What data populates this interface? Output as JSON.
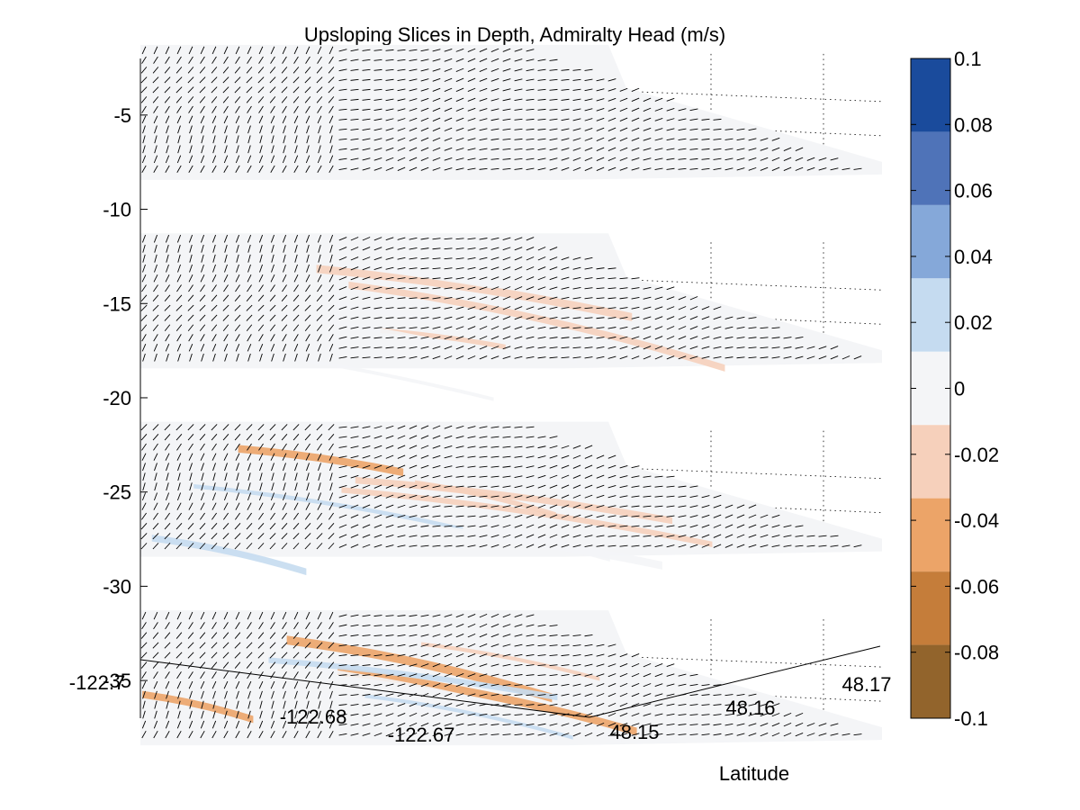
{
  "chart_data": {
    "type": "heatmap",
    "title": "Upsloping Slices in Depth, Admiralty Head (m/s)",
    "xlabel": "",
    "ylabel": "Latitude",
    "zlabel": "",
    "z_ticks": [
      -5,
      -10,
      -15,
      -20,
      -25,
      -30,
      -35
    ],
    "x_ticks": [
      -122.7,
      -122.68,
      -122.67
    ],
    "x_tick_labels": [
      "-122.7",
      "-122.68",
      "-122.67"
    ],
    "y_ticks": [
      48.15,
      48.16,
      48.17
    ],
    "y_tick_labels": [
      "48.15",
      "48.16",
      "48.17"
    ],
    "colorbar": {
      "ticks": [
        0.1,
        0.08,
        0.06,
        0.04,
        0.02,
        0,
        -0.02,
        -0.04,
        -0.06,
        -0.08,
        -0.1
      ],
      "tick_labels": [
        "0.1",
        "0.08",
        "0.06",
        "0.04",
        "0.02",
        "0",
        "-0.02",
        "-0.04",
        "-0.06",
        "-0.08",
        "-0.1"
      ],
      "range": [
        -0.1,
        0.1
      ],
      "colors": [
        "#1a4b9c",
        "#4f73b8",
        "#85a8d9",
        "#c5dbf0",
        "#f4f5f7",
        "#f6d0bb",
        "#eca468",
        "#c57d3a",
        "#92642c"
      ]
    },
    "slices": [
      {
        "depth": -5,
        "vertical_velocity_range": [
          0,
          0
        ]
      },
      {
        "depth": -15,
        "vertical_velocity_range": [
          -0.02,
          0.02
        ]
      },
      {
        "depth": -25,
        "vertical_velocity_range": [
          -0.04,
          0.02
        ]
      },
      {
        "depth": -35,
        "vertical_velocity_range": [
          -0.04,
          0.02
        ]
      }
    ],
    "grid": true,
    "overlay": "horizontal velocity arrows"
  }
}
